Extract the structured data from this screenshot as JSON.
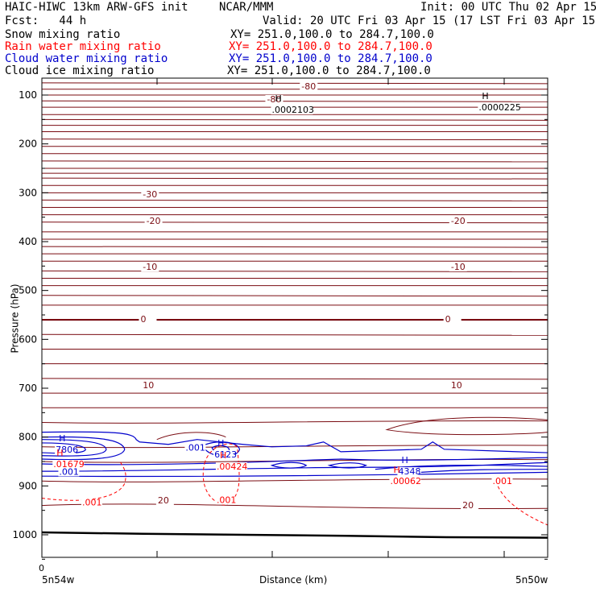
{
  "header": {
    "title": "HAIC-HIWC 13km ARW-GFS init",
    "org": "NCAR/MMM",
    "init": "Init: 00 UTC Thu 02 Apr 15",
    "fcst": "Fcst:   44 h",
    "valid": "Valid: 20 UTC Fri 03 Apr 15 (17 LST Fri 03 Apr 15)",
    "fields": [
      {
        "name": "Snow mixing ratio",
        "xy": "XY= 251.0,100.0 to 284.7,100.0",
        "color": "#000000"
      },
      {
        "name": "Rain water mixing ratio",
        "xy": "XY= 251.0,100.0 to 284.7,100.0",
        "color": "#ff0000"
      },
      {
        "name": "Cloud water mixing ratio",
        "xy": "XY= 251.0,100.0 to 284.7,100.0",
        "color": "#0000cc"
      },
      {
        "name": "Cloud ice mixing ratio",
        "xy": "XY= 251.0,100.0 to 284.7,100.0",
        "color": "#000000"
      }
    ]
  },
  "chart_data": {
    "type": "contour-cross-section",
    "ylabel": "Pressure (hPa)",
    "xlabel": "Distance (km)",
    "x_start_label": "5n54w",
    "x_end_label": "5n50w",
    "x_zero_label": "0",
    "y_ticks": [
      100,
      200,
      300,
      400,
      500,
      600,
      700,
      800,
      900,
      1000
    ],
    "ylim": [
      1050,
      50
    ],
    "xlim": [
      0,
      440
    ],
    "temperature_isotherms_c": [
      {
        "label": "-80",
        "value": -80
      },
      {
        "label": "-30",
        "value": -30
      },
      {
        "label": "-20",
        "value": -20
      },
      {
        "label": "-10",
        "value": -10
      },
      {
        "label": "0",
        "value": 0
      },
      {
        "label": "10",
        "value": 10
      },
      {
        "label": "20",
        "value": 20
      }
    ],
    "isotherm_pressures_hpa": [
      75,
      88,
      100,
      112,
      125,
      140,
      150,
      162,
      175,
      190,
      205,
      220,
      235,
      250,
      260,
      270,
      285,
      300,
      315,
      330,
      345,
      360,
      380,
      395,
      410,
      425,
      440,
      460,
      475,
      490,
      510,
      530,
      560,
      590,
      620,
      650,
      680,
      710,
      740,
      770,
      820,
      850,
      890,
      940
    ],
    "maxima": [
      {
        "marker": "H",
        "label": ".0002103",
        "x_km": 200,
        "p_hpa": 120,
        "field": "Cloud ice mixing ratio",
        "color": "#000000"
      },
      {
        "marker": "H",
        "label": ".0000225",
        "x_km": 380,
        "p_hpa": 115,
        "field": "Cloud ice mixing ratio",
        "color": "#000000"
      },
      {
        "marker": "H",
        "label": "7806",
        "x_km": 12,
        "p_hpa": 815,
        "field": "Cloud water mixing ratio",
        "color": "#0000cc"
      },
      {
        "marker": "H",
        "label": "6123",
        "x_km": 150,
        "p_hpa": 825,
        "field": "Cloud water mixing ratio",
        "color": "#0000cc"
      },
      {
        "marker": "H",
        "label": "4348",
        "x_km": 310,
        "p_hpa": 860,
        "field": "Cloud water mixing ratio",
        "color": "#0000cc"
      },
      {
        "marker": "H",
        "label": ".01679",
        "x_km": 10,
        "p_hpa": 845,
        "field": "Rain water mixing ratio",
        "color": "#ff0000"
      },
      {
        "marker": "H",
        "label": ".00424",
        "x_km": 152,
        "p_hpa": 850,
        "field": "Rain water mixing ratio",
        "color": "#ff0000"
      },
      {
        "marker": "H",
        "label": ".00062",
        "x_km": 303,
        "p_hpa": 880,
        "field": "Rain water mixing ratio",
        "color": "#ff0000"
      }
    ],
    "contour_labels": [
      {
        "label": ".001",
        "x_km": 15,
        "p_hpa": 877,
        "color": "#0000cc"
      },
      {
        "label": ".001",
        "x_km": 125,
        "p_hpa": 828,
        "color": "#0000cc"
      },
      {
        "label": ".001",
        "x_km": 35,
        "p_hpa": 940,
        "color": "#ff0000"
      },
      {
        "label": ".001",
        "x_km": 152,
        "p_hpa": 935,
        "color": "#ff0000"
      },
      {
        "label": ".001",
        "x_km": 392,
        "p_hpa": 896,
        "color": "#ff0000"
      }
    ],
    "surface_pressure_hpa": [
      995,
      998,
      1000,
      1002,
      1005,
      1006
    ]
  }
}
